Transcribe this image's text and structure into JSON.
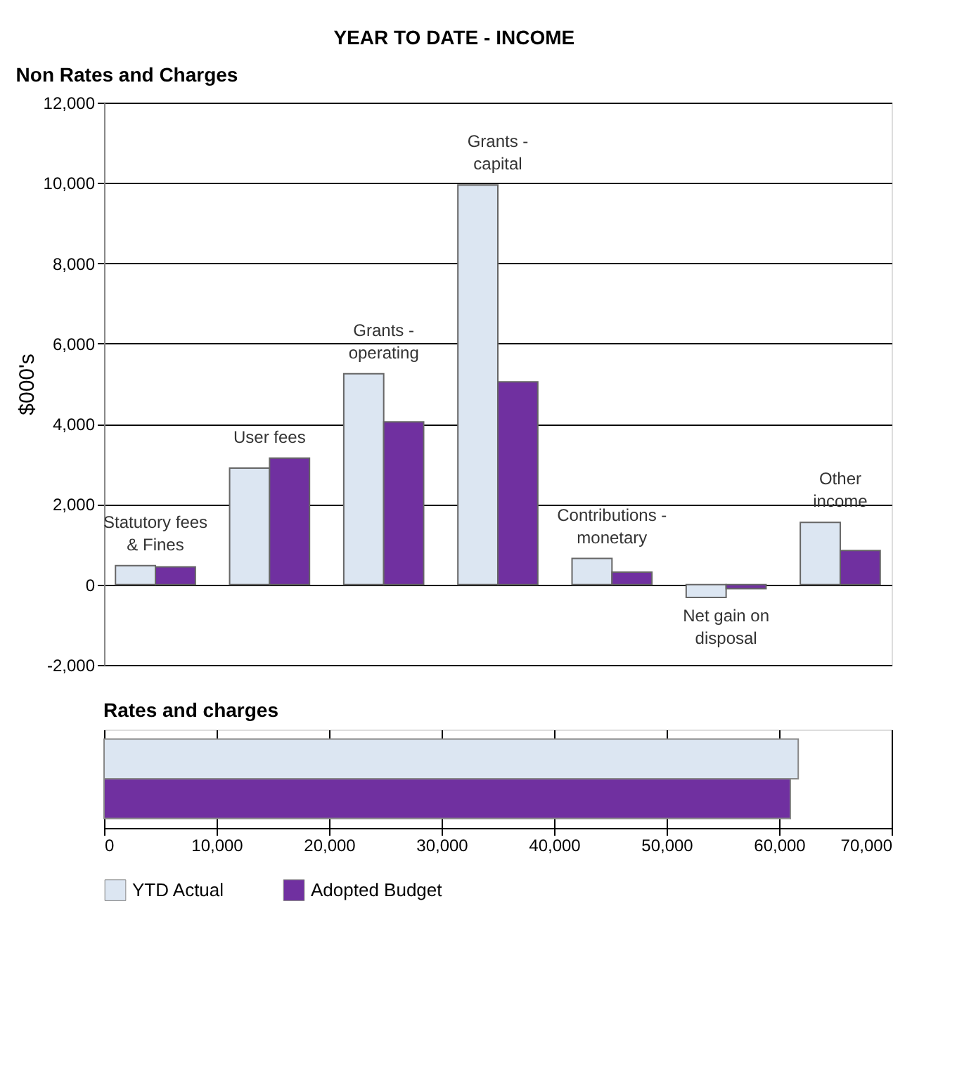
{
  "chart_data": [
    {
      "type": "bar",
      "title": "YEAR TO DATE - INCOME",
      "subtitle": "Non Rates and Charges",
      "ylabel": "$000's",
      "categories": [
        "Statutory fees & Fines",
        "User fees",
        "Grants - operating",
        "Grants - capital",
        "Contributions - monetary",
        "Net gain on disposal",
        "Other income"
      ],
      "series": [
        {
          "color": "#dce6f2",
          "values": [
            470,
            2900,
            5250,
            9950,
            650,
            -320,
            1550
          ]
        },
        {
          "color": "#7030a0",
          "values": [
            440,
            3150,
            4050,
            5050,
            310,
            -100,
            850
          ]
        }
      ],
      "ylim": [
        -2000,
        12000
      ],
      "yticks": [
        {
          "value": -2000,
          "label": "-2,000"
        },
        0,
        {
          "value": 2000,
          "label": "2,000"
        },
        {
          "value": 4000,
          "label": "4,000"
        },
        {
          "value": 6000,
          "label": "6,000"
        },
        {
          "value": 8000,
          "label": "8,000"
        },
        {
          "value": 10000,
          "label": "10,000"
        },
        {
          "value": 12000,
          "label": "12,000"
        }
      ],
      "grid": "y",
      "legend": false,
      "tick_labels": "y"
    },
    {
      "type": "bar",
      "title": "Rates and charges",
      "orientation": "horizontal",
      "categories": [
        null
      ],
      "series": [
        {
          "name": "YTD Actual",
          "color": "#dce6f2",
          "values": [
            61700
          ]
        },
        {
          "name": "Adopted Budget",
          "color": "#7030a0",
          "values": [
            61000
          ]
        }
      ],
      "xlim": [
        0,
        70000
      ],
      "xticks": [
        0,
        {
          "value": 10000,
          "label": "10,000"
        },
        {
          "value": 20000,
          "label": "20,000"
        },
        {
          "value": 30000,
          "label": "30,000"
        },
        {
          "value": 40000,
          "label": "40,000"
        },
        {
          "value": 50000,
          "label": "50,000"
        },
        {
          "value": 60000,
          "label": "60,000"
        },
        {
          "value": 70000,
          "label": "70,000"
        }
      ],
      "grid": "x",
      "legend": "bottom",
      "tick_labels": "x"
    }
  ]
}
